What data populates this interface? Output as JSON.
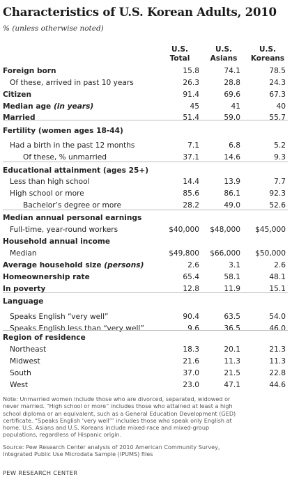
{
  "title": "Characteristics of U.S. Korean Adults, 2010",
  "subtitle": "% (unless otherwise noted)",
  "columns": [
    "U.S.\nTotal",
    "U.S.\nAsians",
    "U.S.\nKoreans"
  ],
  "rows": [
    {
      "label": "Foreign born",
      "indent": 0,
      "bold": true,
      "values": [
        "15.8",
        "74.1",
        "78.5"
      ]
    },
    {
      "label": "Of these, arrived in past 10 years",
      "indent": 1,
      "bold": false,
      "values": [
        "26.3",
        "28.8",
        "24.3"
      ]
    },
    {
      "label": "Citizen",
      "indent": 0,
      "bold": true,
      "values": [
        "91.4",
        "69.6",
        "67.3"
      ]
    },
    {
      "label": "Median age",
      "label_italic": " (in years)",
      "indent": 0,
      "bold": true,
      "values": [
        "45",
        "41",
        "40"
      ]
    },
    {
      "label": "Married",
      "indent": 0,
      "bold": true,
      "values": [
        "51.4",
        "59.0",
        "55.7"
      ]
    },
    {
      "label": "Fertility (women ages 18-44)",
      "indent": 0,
      "bold": true,
      "values": [
        "",
        "",
        ""
      ]
    },
    {
      "label": "Had a birth in the past 12 months",
      "indent": 1,
      "bold": false,
      "values": [
        "7.1",
        "6.8",
        "5.2"
      ]
    },
    {
      "label": "Of these, % unmarried",
      "indent": 2,
      "bold": false,
      "values": [
        "37.1",
        "14.6",
        "9.3"
      ]
    },
    {
      "label": "Educational attainment (ages 25+)",
      "indent": 0,
      "bold": true,
      "values": [
        "",
        "",
        ""
      ]
    },
    {
      "label": "Less than high school",
      "indent": 1,
      "bold": false,
      "values": [
        "14.4",
        "13.9",
        "7.7"
      ]
    },
    {
      "label": "High school or more",
      "indent": 1,
      "bold": false,
      "values": [
        "85.6",
        "86.1",
        "92.3"
      ]
    },
    {
      "label": "Bachelor’s degree or more",
      "indent": 2,
      "bold": false,
      "values": [
        "28.2",
        "49.0",
        "52.6"
      ]
    },
    {
      "label": "Median annual personal earnings",
      "indent": 0,
      "bold": true,
      "values": [
        "",
        "",
        ""
      ]
    },
    {
      "label": "Full-time, year-round workers",
      "indent": 1,
      "bold": false,
      "values": [
        "$40,000",
        "$48,000",
        "$45,000"
      ]
    },
    {
      "label": "Household annual income",
      "indent": 0,
      "bold": true,
      "values": [
        "",
        "",
        ""
      ]
    },
    {
      "label": "Median",
      "indent": 1,
      "bold": false,
      "values": [
        "$49,800",
        "$66,000",
        "$50,000"
      ]
    },
    {
      "label": "Average household size",
      "label_italic": " (persons)",
      "indent": 0,
      "bold": true,
      "values": [
        "2.6",
        "3.1",
        "2.6"
      ]
    },
    {
      "label": "Homeownership rate",
      "indent": 0,
      "bold": true,
      "values": [
        "65.4",
        "58.1",
        "48.1"
      ]
    },
    {
      "label": "In poverty",
      "indent": 0,
      "bold": true,
      "values": [
        "12.8",
        "11.9",
        "15.1"
      ]
    },
    {
      "label": "Language",
      "indent": 0,
      "bold": true,
      "values": [
        "",
        "",
        ""
      ]
    },
    {
      "label": "Speaks English “very well”",
      "indent": 1,
      "bold": false,
      "values": [
        "90.4",
        "63.5",
        "54.0"
      ]
    },
    {
      "label": "Speaks English less than “very well”",
      "indent": 1,
      "bold": false,
      "values": [
        "9.6",
        "36.5",
        "46.0"
      ]
    },
    {
      "label": "Region of residence",
      "indent": 0,
      "bold": true,
      "values": [
        "",
        "",
        ""
      ]
    },
    {
      "label": "Northeast",
      "indent": 1,
      "bold": false,
      "values": [
        "18.3",
        "20.1",
        "21.3"
      ]
    },
    {
      "label": "Midwest",
      "indent": 1,
      "bold": false,
      "values": [
        "21.6",
        "11.3",
        "11.3"
      ]
    },
    {
      "label": "South",
      "indent": 1,
      "bold": false,
      "values": [
        "37.0",
        "21.5",
        "22.8"
      ]
    },
    {
      "label": "West",
      "indent": 1,
      "bold": false,
      "values": [
        "23.0",
        "47.1",
        "44.6"
      ]
    }
  ],
  "note_lines": [
    "Note: Unmarried women include those who are divorced, separated, widowed or",
    "never married. “High school or more” includes those who attained at least a high",
    "school diploma or an equivalent, such as a General Education Development (GED)",
    "certificate. “Speaks English ‘very well’” includes those who speak only English at",
    "home. U.S. Asians and U.S. Koreans include mixed-race and mixed-group",
    "populations, regardless of Hispanic origin."
  ],
  "source_lines": [
    "Source: Pew Research Center analysis of 2010 American Community Survey,",
    "Integrated Public Use Microdata Sample (IPUMS) files"
  ],
  "brand": "PEW RESEARCH CENTER"
}
